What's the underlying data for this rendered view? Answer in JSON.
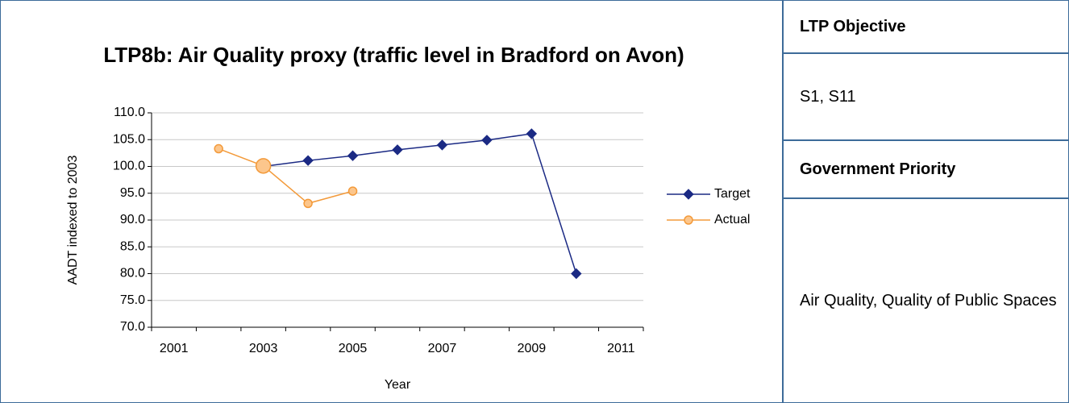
{
  "chart_data": {
    "type": "line",
    "title": "LTP8b: Air Quality proxy (traffic level in Bradford on Avon)",
    "x_label": "Year",
    "y_label": "AADT indexed to 2003",
    "categories": [
      "2001",
      null,
      "2003",
      null,
      "2005",
      null,
      "2007",
      null,
      "2009",
      null,
      "2011"
    ],
    "series": [
      {
        "name": "Target",
        "color": "#1b2a84",
        "marker": "diamond",
        "values": [
          null,
          null,
          100,
          101.1,
          102,
          103.1,
          104,
          104.9,
          106.1,
          80,
          null
        ]
      },
      {
        "name": "Actual",
        "color": "#f39a3a",
        "marker": "circle",
        "values": [
          null,
          103.3,
          100.1,
          93.1,
          95.4,
          null,
          null,
          null,
          null,
          null,
          null
        ]
      }
    ],
    "ylim": [
      70,
      110
    ],
    "yticks": [
      {
        "value": 70,
        "label": "70.0"
      },
      {
        "value": 75,
        "label": "75.0"
      },
      {
        "value": 80,
        "label": "80.0"
      },
      {
        "value": 85,
        "label": "85.0"
      },
      {
        "value": 90,
        "label": "90.0"
      },
      {
        "value": 95,
        "label": "95.0"
      },
      {
        "value": 100,
        "label": "100.0"
      },
      {
        "value": 105,
        "label": "105.0"
      },
      {
        "value": 110,
        "label": "110.0"
      }
    ],
    "grid": true,
    "legend": "right"
  },
  "sidebar": {
    "rows": [
      "LTP Objective",
      "S1, S11",
      "Government Priority",
      "Air Quality, Quality of Public Spaces"
    ]
  }
}
